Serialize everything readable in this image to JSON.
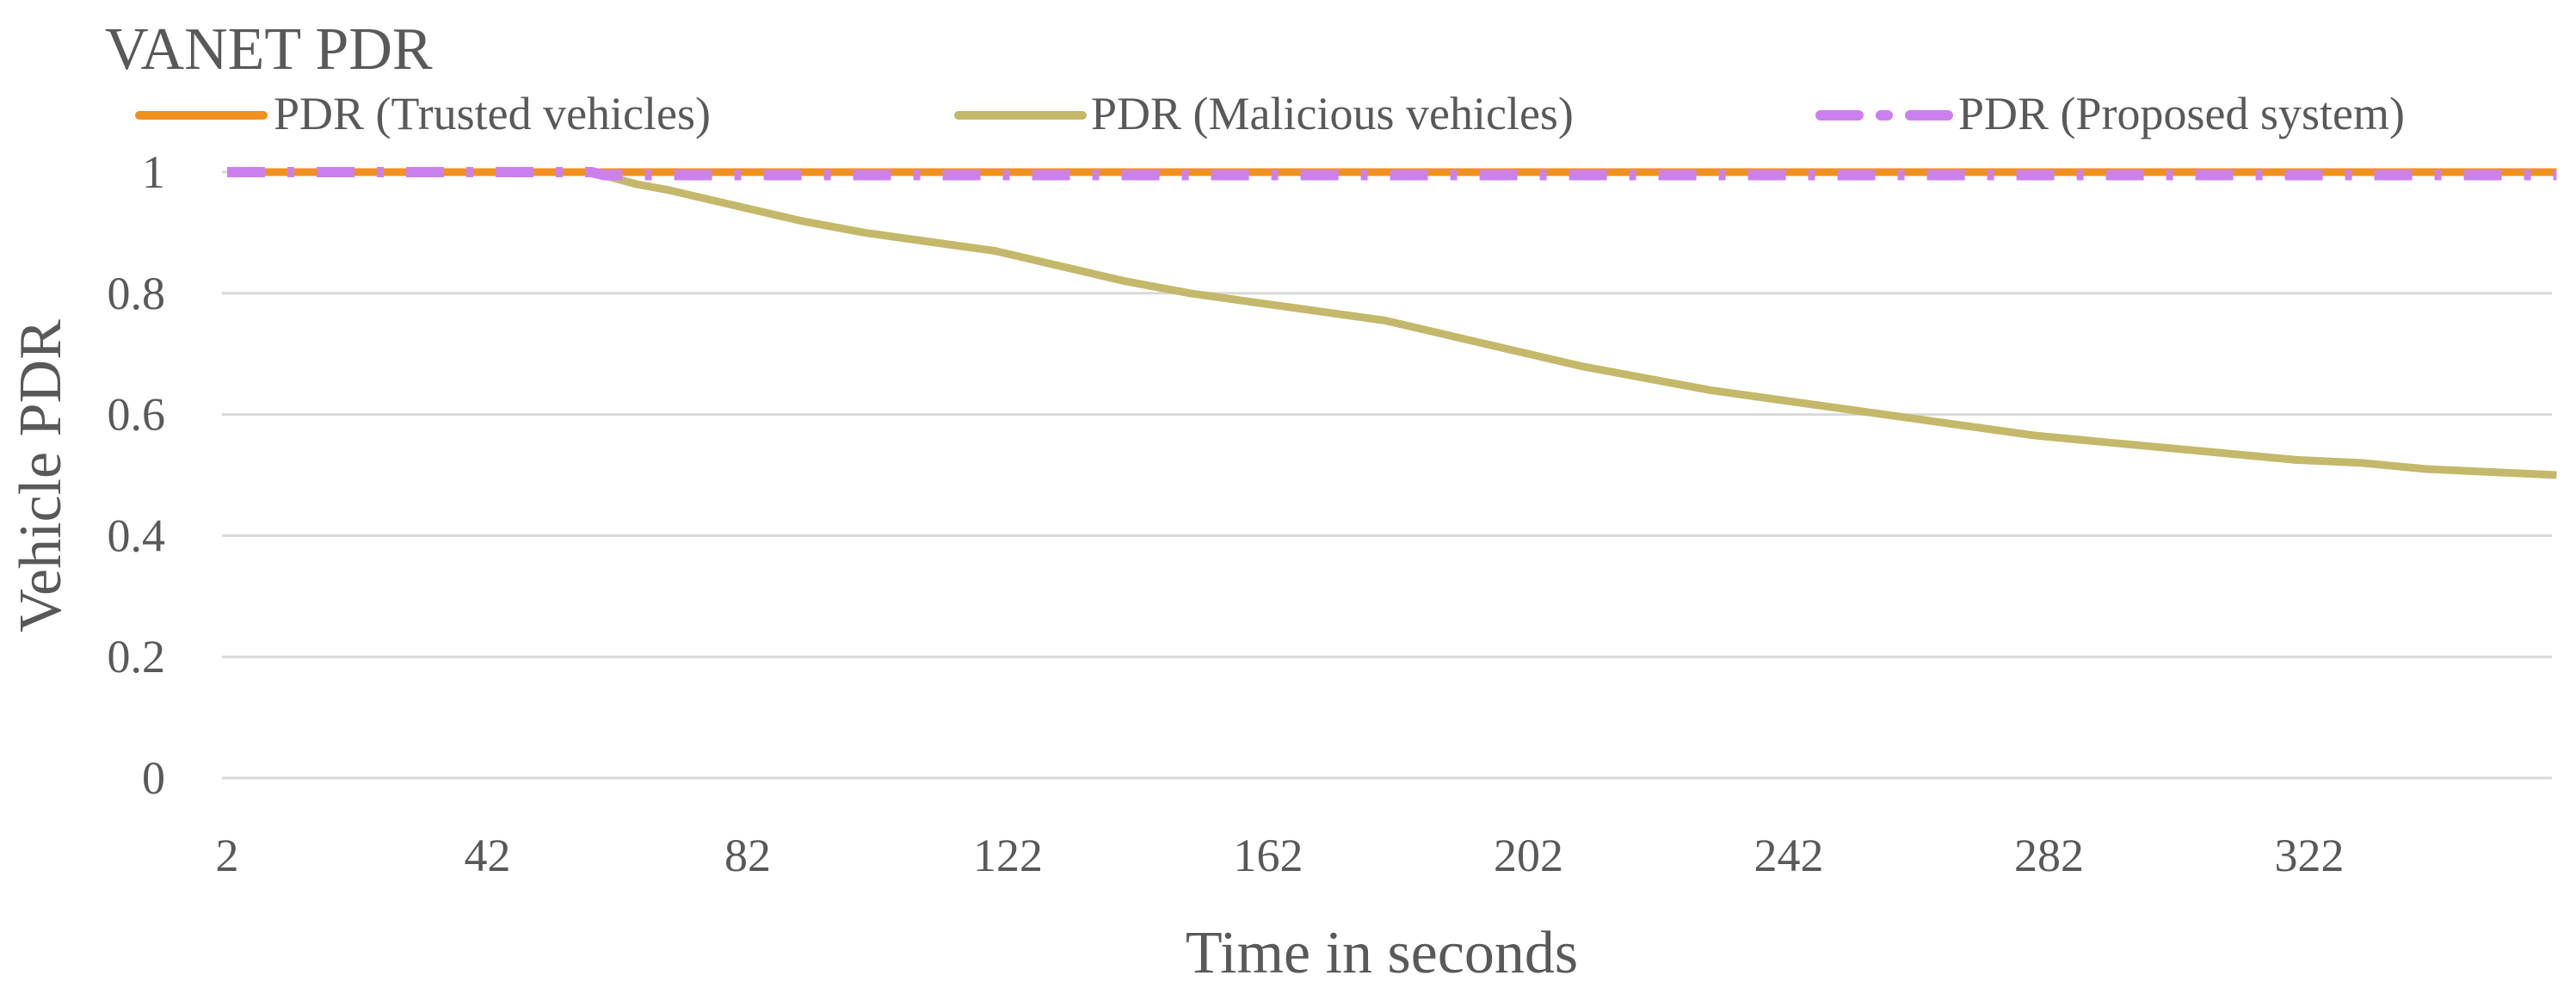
{
  "chart_data": {
    "type": "line",
    "title": "VANET PDR",
    "xlabel": "Time in seconds",
    "ylabel": "Vehicle PDR",
    "xlim": [
      2,
      360
    ],
    "ylim": [
      0,
      1
    ],
    "x_ticks": [
      "2",
      "42",
      "82",
      "122",
      "162",
      "202",
      "242",
      "282",
      "322"
    ],
    "y_ticks": [
      "0",
      "0.2",
      "0.4",
      "0.6",
      "0.8",
      "1"
    ],
    "grid": true,
    "legend_position": "top",
    "series": [
      {
        "name": "PDR (Trusted vehicles)",
        "color": "#f0901e",
        "style": "solid",
        "x": [
          2,
          360
        ],
        "y": [
          1,
          1
        ]
      },
      {
        "name": "PDR (Malicious vehicles)",
        "color": "#c4b86a",
        "style": "solid",
        "x": [
          2,
          20,
          40,
          58,
          65,
          70,
          80,
          90,
          100,
          110,
          120,
          130,
          140,
          150,
          160,
          170,
          180,
          190,
          200,
          210,
          220,
          230,
          240,
          250,
          260,
          270,
          280,
          290,
          300,
          310,
          320,
          330,
          340,
          350,
          360
        ],
        "y": [
          1,
          1,
          1,
          1,
          0.98,
          0.97,
          0.945,
          0.92,
          0.9,
          0.885,
          0.87,
          0.845,
          0.82,
          0.8,
          0.785,
          0.77,
          0.755,
          0.73,
          0.705,
          0.68,
          0.66,
          0.64,
          0.625,
          0.61,
          0.595,
          0.58,
          0.565,
          0.555,
          0.545,
          0.535,
          0.525,
          0.52,
          0.51,
          0.505,
          0.5
        ]
      },
      {
        "name": "PDR (Proposed system)",
        "color": "#cc80ee",
        "style": "dash-dot",
        "x": [
          2,
          58,
          60,
          360
        ],
        "y": [
          1,
          1,
          0.995,
          0.995
        ]
      }
    ]
  }
}
